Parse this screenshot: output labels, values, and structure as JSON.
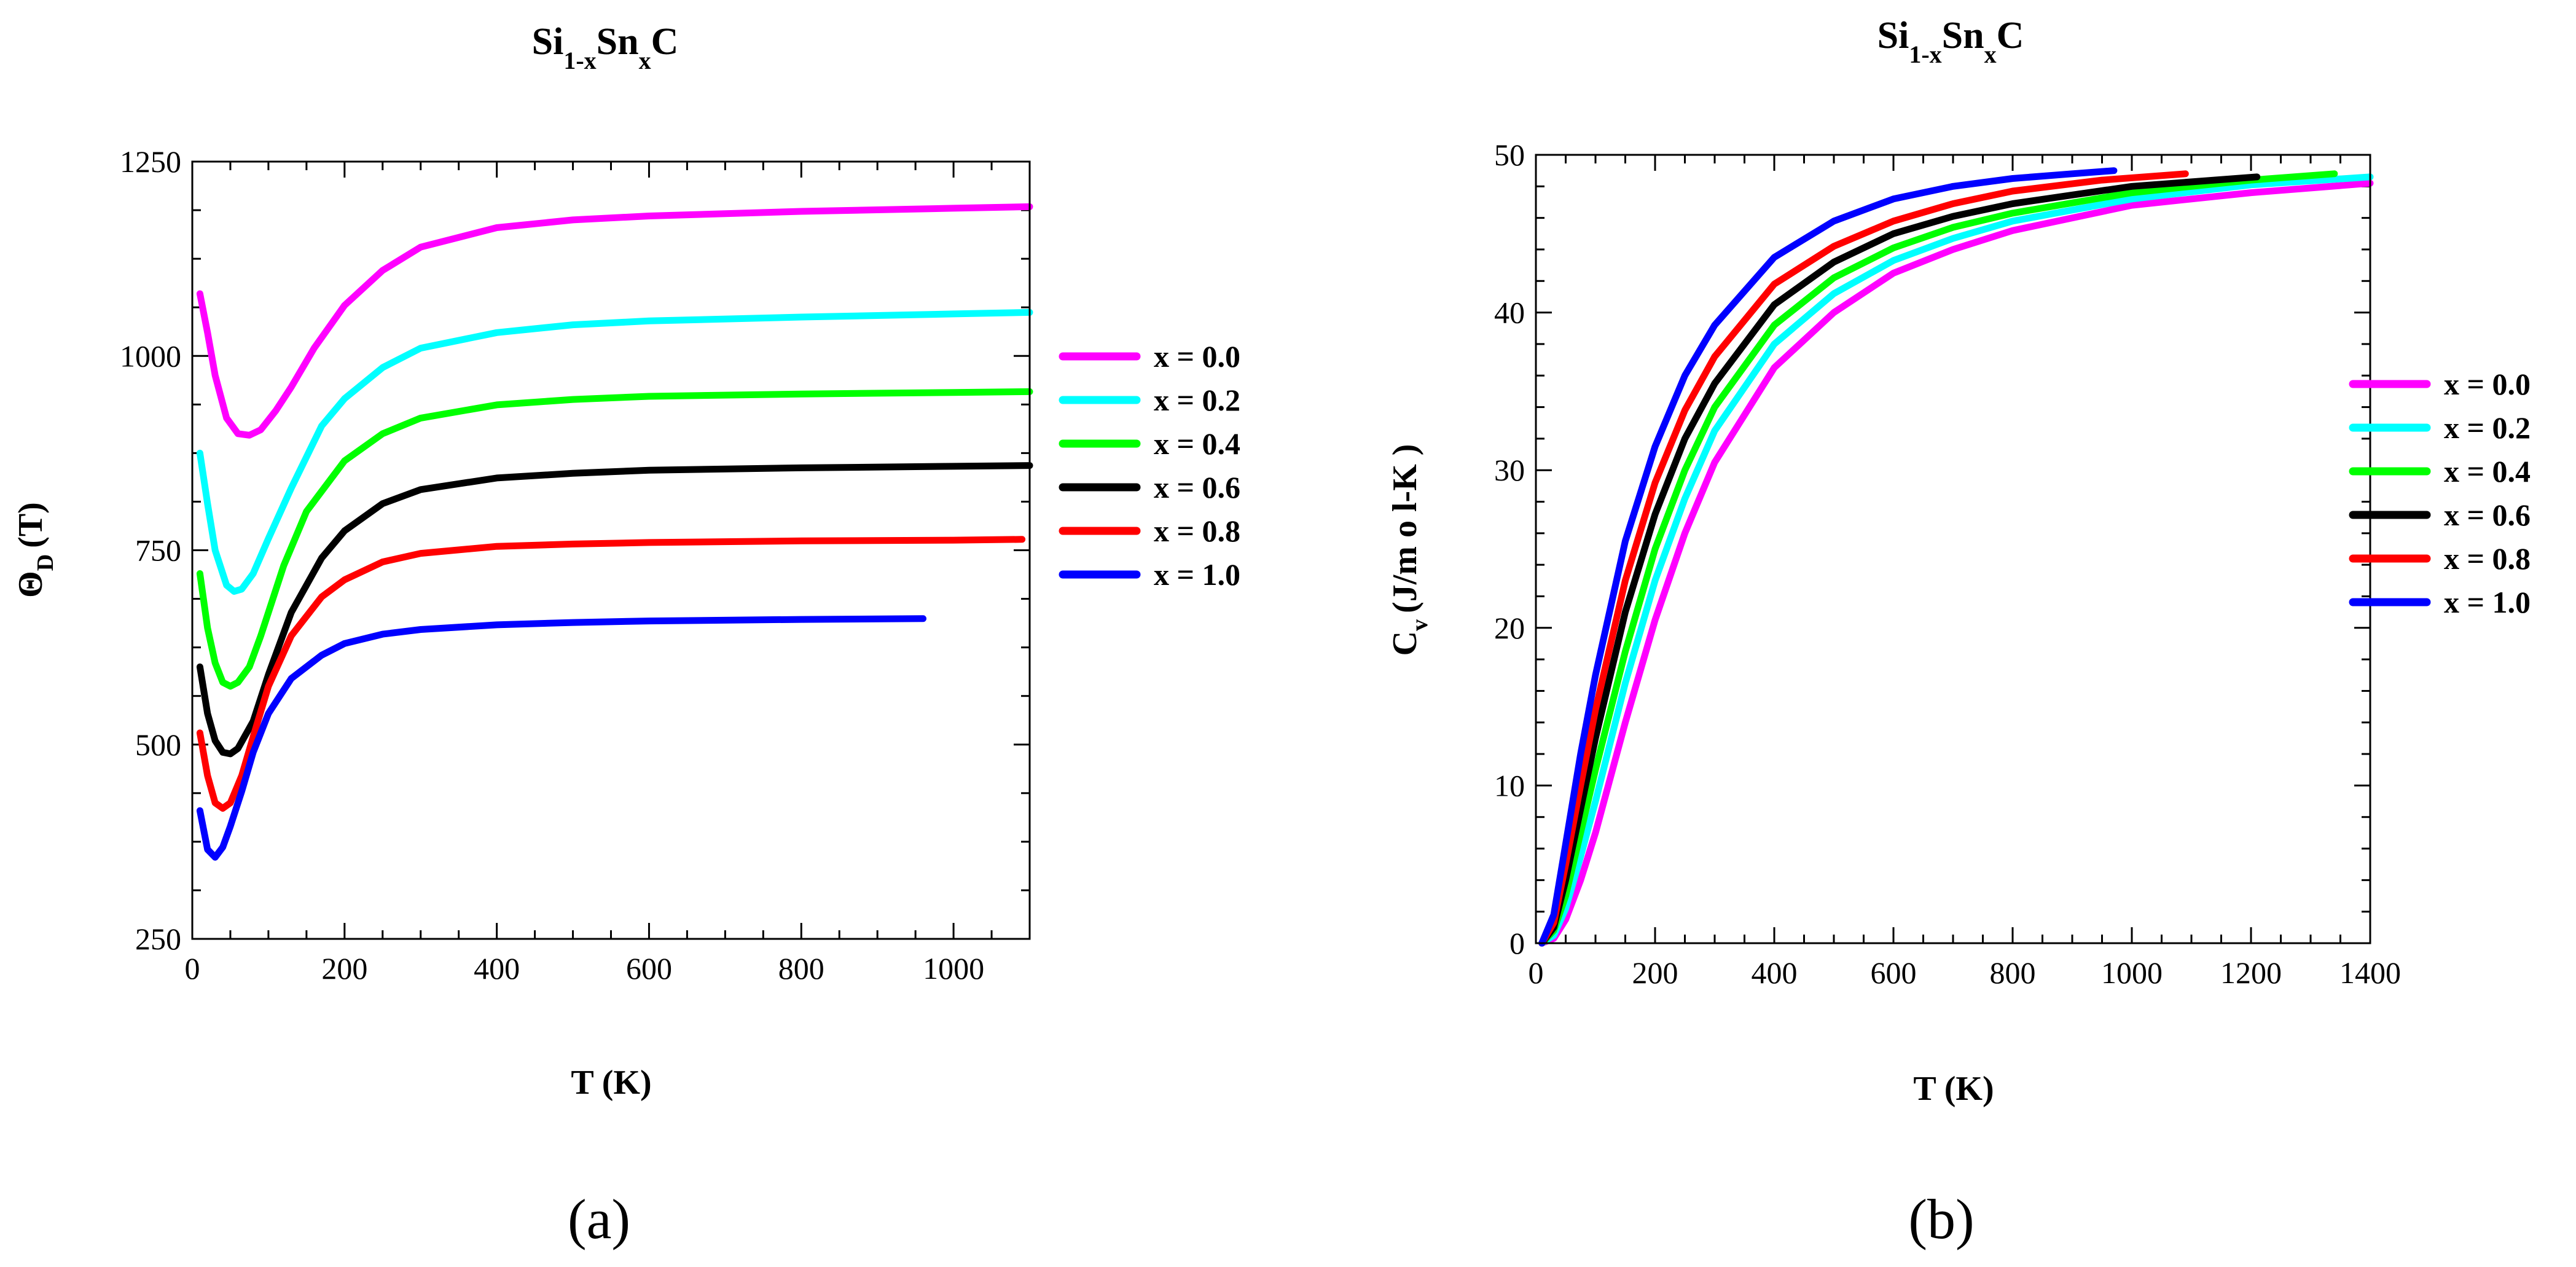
{
  "chart_data": [
    {
      "type": "line",
      "panel_label": "(a)",
      "title": {
        "main1": "Si",
        "sub1": "1-x",
        "main2": "Sn",
        "sub2": "x",
        "main3": "C"
      },
      "xlabel": "T (K)",
      "ylabel": {
        "main": "Θ",
        "sub": "D",
        "rest": "(T)"
      },
      "xlim": [
        0,
        1100
      ],
      "ylim": [
        250,
        1250
      ],
      "xticks": [
        0,
        200,
        400,
        600,
        800,
        1000
      ],
      "yticks": [
        250,
        500,
        750,
        1000,
        1250
      ],
      "legend_position": "right",
      "series": [
        {
          "name": "x = 0.0",
          "color": "#ff00ff",
          "x": [
            10,
            20,
            30,
            45,
            60,
            75,
            90,
            110,
            130,
            160,
            200,
            250,
            300,
            400,
            500,
            600,
            800,
            1000,
            1100
          ],
          "y": [
            1080,
            1030,
            975,
            920,
            900,
            898,
            905,
            930,
            960,
            1010,
            1065,
            1110,
            1140,
            1165,
            1175,
            1180,
            1186,
            1190,
            1192
          ]
        },
        {
          "name": "x = 0.2",
          "color": "#00ffff",
          "x": [
            10,
            20,
            30,
            45,
            55,
            65,
            80,
            100,
            130,
            170,
            200,
            250,
            300,
            400,
            500,
            600,
            800,
            1000,
            1100
          ],
          "y": [
            875,
            810,
            750,
            705,
            697,
            700,
            720,
            765,
            830,
            910,
            945,
            985,
            1010,
            1030,
            1040,
            1045,
            1050,
            1054,
            1056
          ]
        },
        {
          "name": "x = 0.4",
          "color": "#00ff00",
          "x": [
            10,
            20,
            30,
            40,
            50,
            60,
            75,
            90,
            120,
            150,
            200,
            250,
            300,
            400,
            500,
            600,
            800,
            1000,
            1100
          ],
          "y": [
            720,
            650,
            605,
            580,
            575,
            580,
            600,
            640,
            730,
            800,
            865,
            900,
            920,
            937,
            944,
            948,
            951,
            953,
            954
          ]
        },
        {
          "name": "x = 0.6",
          "color": "#000000",
          "x": [
            10,
            20,
            30,
            40,
            50,
            60,
            80,
            100,
            130,
            170,
            200,
            250,
            300,
            400,
            500,
            600,
            800,
            1000,
            1100
          ],
          "y": [
            600,
            540,
            505,
            490,
            488,
            495,
            530,
            590,
            670,
            740,
            775,
            810,
            828,
            843,
            849,
            853,
            856,
            858,
            859
          ]
        },
        {
          "name": "x = 0.8",
          "color": "#ff0000",
          "x": [
            10,
            20,
            30,
            40,
            50,
            65,
            80,
            100,
            130,
            170,
            200,
            250,
            300,
            400,
            500,
            600,
            800,
            1000,
            1090
          ],
          "y": [
            515,
            460,
            425,
            418,
            425,
            460,
            510,
            575,
            640,
            690,
            712,
            735,
            746,
            755,
            758,
            760,
            762,
            763,
            764
          ]
        },
        {
          "name": "x = 1.0",
          "color": "#0000ff",
          "x": [
            10,
            20,
            30,
            40,
            50,
            65,
            80,
            100,
            130,
            170,
            200,
            250,
            300,
            400,
            500,
            600,
            800,
            960
          ],
          "y": [
            415,
            365,
            355,
            368,
            395,
            440,
            490,
            540,
            585,
            615,
            630,
            642,
            648,
            654,
            657,
            659,
            661,
            662
          ]
        }
      ]
    },
    {
      "type": "line",
      "panel_label": "(b)",
      "title": {
        "main1": "Si",
        "sub1": "1-x",
        "main2": "Sn",
        "sub2": "x",
        "main3": "C"
      },
      "xlabel": "T (K)",
      "ylabel": {
        "main": "C",
        "sub": "v",
        "rest": "(J/m o l-K )"
      },
      "xlim": [
        0,
        1400
      ],
      "ylim": [
        0,
        50
      ],
      "xticks": [
        0,
        200,
        400,
        600,
        800,
        1000,
        1200,
        1400
      ],
      "yticks": [
        0,
        10,
        20,
        30,
        40,
        50
      ],
      "legend_position": "right",
      "series": [
        {
          "name": "x = 0.0",
          "color": "#ff00ff",
          "x": [
            10,
            30,
            50,
            75,
            100,
            150,
            200,
            250,
            300,
            400,
            500,
            600,
            700,
            800,
            1000,
            1200,
            1400
          ],
          "y": [
            0,
            0.3,
            1.5,
            4,
            7,
            14,
            20.5,
            26,
            30.5,
            36.5,
            40,
            42.5,
            44,
            45.2,
            46.8,
            47.6,
            48.2
          ]
        },
        {
          "name": "x = 0.2",
          "color": "#00ffff",
          "x": [
            10,
            30,
            50,
            75,
            100,
            150,
            200,
            250,
            300,
            400,
            500,
            600,
            700,
            800,
            1000,
            1200,
            1400
          ],
          "y": [
            0,
            0.5,
            2.2,
            5.5,
            9,
            16.5,
            23,
            28.2,
            32.5,
            38,
            41.2,
            43.3,
            44.7,
            45.8,
            47.2,
            48.1,
            48.6
          ]
        },
        {
          "name": "x = 0.4",
          "color": "#00ff00",
          "x": [
            10,
            30,
            50,
            75,
            100,
            150,
            200,
            250,
            300,
            400,
            500,
            600,
            700,
            800,
            1000,
            1200,
            1340
          ],
          "y": [
            0,
            0.8,
            3,
            7,
            11,
            18.5,
            25,
            30,
            34,
            39.2,
            42.2,
            44.1,
            45.4,
            46.3,
            47.6,
            48.4,
            48.8
          ]
        },
        {
          "name": "x = 0.6",
          "color": "#000000",
          "x": [
            10,
            30,
            50,
            75,
            100,
            150,
            200,
            250,
            300,
            400,
            500,
            600,
            700,
            800,
            1000,
            1210
          ],
          "y": [
            0,
            1,
            4,
            8.5,
            13,
            21,
            27.2,
            32,
            35.5,
            40.5,
            43.2,
            45,
            46.1,
            46.9,
            48,
            48.6
          ]
        },
        {
          "name": "x = 0.8",
          "color": "#ff0000",
          "x": [
            10,
            30,
            50,
            75,
            100,
            150,
            200,
            250,
            300,
            400,
            500,
            600,
            700,
            800,
            950,
            1090
          ],
          "y": [
            0,
            1.3,
            5,
            10,
            14.8,
            23,
            29.2,
            33.8,
            37.2,
            41.8,
            44.2,
            45.8,
            46.9,
            47.7,
            48.4,
            48.8
          ]
        },
        {
          "name": "x = 1.0",
          "color": "#0000ff",
          "x": [
            10,
            30,
            50,
            75,
            100,
            150,
            200,
            250,
            300,
            400,
            500,
            600,
            700,
            800,
            900,
            970
          ],
          "y": [
            0,
            1.8,
            6.3,
            12,
            17,
            25.5,
            31.5,
            36,
            39.2,
            43.5,
            45.8,
            47.2,
            48,
            48.5,
            48.8,
            49
          ]
        }
      ]
    }
  ]
}
